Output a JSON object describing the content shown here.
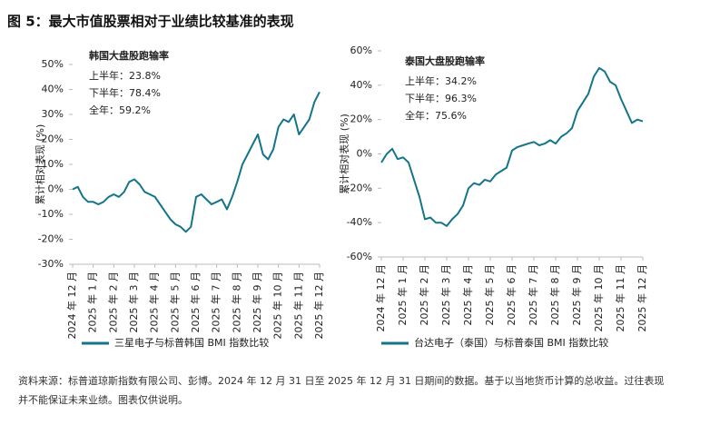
{
  "header": {
    "title": "图 5：最大市值股票相对于业绩比较基准的表现"
  },
  "chart_data": [
    {
      "type": "line",
      "ylabel": "累计相对表现 (%)",
      "annotation": {
        "title": "韩国大盘股跑输率",
        "lines": [
          "上半年：23.8%",
          "下半年：78.4%",
          "全年：59.2%"
        ]
      },
      "x": [
        0,
        0.25,
        0.5,
        0.75,
        1,
        1.25,
        1.5,
        1.75,
        2,
        2.25,
        2.5,
        2.75,
        3,
        3.25,
        3.5,
        3.75,
        4,
        4.25,
        4.5,
        4.75,
        5,
        5.25,
        5.5,
        5.75,
        6,
        6.25,
        6.5,
        6.75,
        7,
        7.25,
        7.5,
        7.75,
        8,
        8.25,
        8.5,
        8.75,
        9,
        9.25,
        9.5,
        9.75,
        10,
        10.25,
        10.5,
        10.75,
        11,
        11.25,
        11.5,
        11.75,
        12
      ],
      "series": [
        {
          "name": "三星电子与标普韩国 BMI 指数比较",
          "color": "#14758a",
          "values": [
            0,
            1,
            -3,
            -5,
            -5,
            -6,
            -5,
            -3,
            -2,
            -3,
            -1,
            3,
            4,
            2,
            -1,
            -2,
            -3,
            -6,
            -9,
            -12,
            -14,
            -15,
            -17,
            -15,
            -3,
            -2,
            -4,
            -6,
            -5,
            -4,
            -8,
            -3,
            3,
            10,
            14,
            18,
            22,
            14,
            12,
            16,
            25,
            28,
            27,
            30,
            22,
            25,
            28,
            35,
            39
          ]
        }
      ],
      "xlim": [
        0,
        12
      ],
      "xticks": [
        {
          "value": 0,
          "label": "2024 年 12 月"
        },
        {
          "value": 1,
          "label": "2025 年 1 月"
        },
        {
          "value": 2,
          "label": "2025 年 2 月"
        },
        {
          "value": 3,
          "label": "2025 年 3 月"
        },
        {
          "value": 4,
          "label": "2025 年 4 月"
        },
        {
          "value": 5,
          "label": "2025 年 5 月"
        },
        {
          "value": 6,
          "label": "2025 年 6 月"
        },
        {
          "value": 7,
          "label": "2025 年 7 月"
        },
        {
          "value": 8,
          "label": "2025 年 8 月"
        },
        {
          "value": 9,
          "label": "2025 年 9 月"
        },
        {
          "value": 10,
          "label": "2025 年 10 月"
        },
        {
          "value": 11,
          "label": "2025 年 11 月"
        },
        {
          "value": 12,
          "label": "2025 年 12 月"
        }
      ],
      "ylim": [
        -30,
        50
      ],
      "yticks": [
        {
          "value": -30,
          "label": "-30%"
        },
        {
          "value": -20,
          "label": "-20%"
        },
        {
          "value": -10,
          "label": "-10%"
        },
        {
          "value": 0,
          "label": "0%"
        },
        {
          "value": 10,
          "label": "10%"
        },
        {
          "value": 20,
          "label": "20%"
        },
        {
          "value": 30,
          "label": "30%"
        },
        {
          "value": 40,
          "label": "40%"
        },
        {
          "value": 50,
          "label": "50%"
        }
      ]
    },
    {
      "type": "line",
      "ylabel": "累计相对表现 (%)",
      "annotation": {
        "title": "泰国大盘股跑输率",
        "lines": [
          "上半年：34.2%",
          "下半年：96.3%",
          "全年：75.6%"
        ]
      },
      "x": [
        0,
        0.25,
        0.5,
        0.75,
        1,
        1.25,
        1.5,
        1.75,
        2,
        2.25,
        2.5,
        2.75,
        3,
        3.25,
        3.5,
        3.75,
        4,
        4.25,
        4.5,
        4.75,
        5,
        5.25,
        5.5,
        5.75,
        6,
        6.25,
        6.5,
        6.75,
        7,
        7.25,
        7.5,
        7.75,
        8,
        8.25,
        8.5,
        8.75,
        9,
        9.25,
        9.5,
        9.75,
        10,
        10.25,
        10.5,
        10.75,
        11,
        11.25,
        11.5,
        11.75,
        12
      ],
      "series": [
        {
          "name": "台达电子（泰国）与标普泰国 BMI 指数比较",
          "color": "#14758a",
          "values": [
            -5,
            0,
            3,
            -3,
            -2,
            -5,
            -15,
            -25,
            -38,
            -37,
            -40,
            -40,
            -42,
            -38,
            -35,
            -30,
            -20,
            -17,
            -18,
            -15,
            -16,
            -12,
            -10,
            -8,
            2,
            4,
            5,
            6,
            7,
            5,
            6,
            8,
            6,
            10,
            12,
            15,
            25,
            30,
            35,
            45,
            50,
            48,
            42,
            40,
            32,
            25,
            18,
            20,
            19
          ]
        }
      ],
      "xlim": [
        0,
        12
      ],
      "xticks": [
        {
          "value": 0,
          "label": "2024 年 12 月"
        },
        {
          "value": 1,
          "label": "2025 年 1 月"
        },
        {
          "value": 2,
          "label": "2025 年 2 月"
        },
        {
          "value": 3,
          "label": "2025 年 3 月"
        },
        {
          "value": 4,
          "label": "2025 年 4 月"
        },
        {
          "value": 5,
          "label": "2025 年 5 月"
        },
        {
          "value": 6,
          "label": "2025 年 6 月"
        },
        {
          "value": 7,
          "label": "2025 年 7 月"
        },
        {
          "value": 8,
          "label": "2025 年 8 月"
        },
        {
          "value": 9,
          "label": "2025 年 9 月"
        },
        {
          "value": 10,
          "label": "2025 年 10 月"
        },
        {
          "value": 11,
          "label": "2025 年 11 月"
        },
        {
          "value": 12,
          "label": "2025 年 12 月"
        }
      ],
      "ylim": [
        -60,
        60
      ],
      "yticks": [
        {
          "value": -60,
          "label": "-60%"
        },
        {
          "value": -40,
          "label": "-40%"
        },
        {
          "value": -20,
          "label": "-20%"
        },
        {
          "value": 0,
          "label": "0%"
        },
        {
          "value": 20,
          "label": "20%"
        },
        {
          "value": 40,
          "label": "40%"
        },
        {
          "value": 60,
          "label": "60%"
        }
      ]
    }
  ],
  "footnote": [
    "资料来源：标普道琼斯指数有限公司、彭博。2024 年 12 月 31 日至 2025 年 12 月 31 日期间的数据。基于以当地货币计算的总收益。过往表现",
    "并不能保证未来业绩。图表仅供说明。"
  ]
}
